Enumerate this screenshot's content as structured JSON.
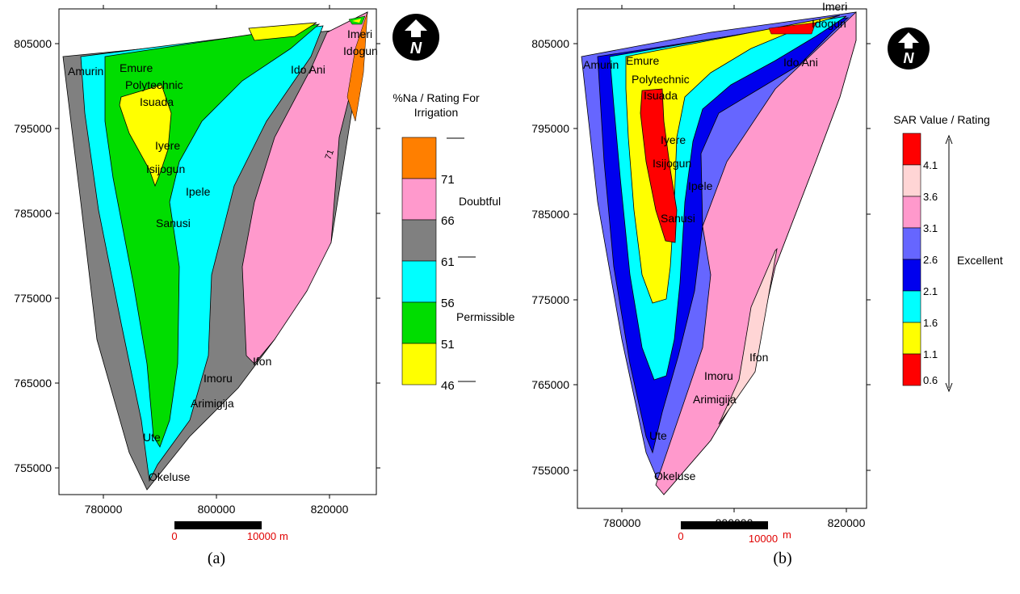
{
  "panels": [
    {
      "id": "a",
      "caption": "(a)",
      "x_ticks": [
        "780000",
        "800000",
        "820000"
      ],
      "y_ticks": [
        "805000",
        "795000",
        "785000",
        "775000",
        "765000",
        "755000"
      ],
      "legend_title_lines": [
        "%Na / Rating For",
        "Irrigation"
      ],
      "legend_classes": [
        {
          "value": "",
          "color": "#ff7f00"
        },
        {
          "value": "71",
          "color": "#ff99cc"
        },
        {
          "value": "66",
          "color": "#808080"
        },
        {
          "value": "61",
          "color": "#00ffff"
        },
        {
          "value": "56",
          "color": "#00dd00"
        },
        {
          "value": "51",
          "color": "#ffff00"
        },
        {
          "value": "46",
          "color": ""
        }
      ],
      "ratings": [
        "Doubtful",
        "Permissible"
      ],
      "contour_label": "71",
      "towns": [
        "Imeri",
        "Idogun",
        "Ido Ani",
        "Amurin",
        "Emure",
        "Polytechnic",
        "Isuada",
        "Iyere",
        "Isijogun",
        "Ipele",
        "Sanusi",
        "Ifon",
        "Imoru",
        "Arimigija",
        "Ute",
        "Okeluse"
      ],
      "scale": {
        "start": "0",
        "end": "10000",
        "unit": "m"
      }
    },
    {
      "id": "b",
      "caption": "(b)",
      "x_ticks": [
        "780000",
        "800000",
        "820000"
      ],
      "y_ticks": [
        "805000",
        "795000",
        "785000",
        "775000",
        "765000",
        "755000"
      ],
      "legend_title": "SAR Value / Rating",
      "legend_classes": [
        {
          "value": "4.1",
          "color": "#ff0000"
        },
        {
          "value": "3.6",
          "color": "#ffd5d5"
        },
        {
          "value": "3.1",
          "color": "#ff99cc"
        },
        {
          "value": "2.6",
          "color": "#6666ff"
        },
        {
          "value": "2.1",
          "color": "#0000ee"
        },
        {
          "value": "1.6",
          "color": "#00ffff"
        },
        {
          "value": "1.1",
          "color": "#ffff00"
        },
        {
          "value": "0.6",
          "color": "#ff0000"
        }
      ],
      "rating": "Excellent",
      "towns": [
        "Imeri",
        "Idogun",
        "Ido Ani",
        "Amurin",
        "Emure",
        "Polytechnic",
        "Isuada",
        "Iyere",
        "Isijogun",
        "Ipele",
        "Sanusi",
        "Ifon",
        "Imoru",
        "Arimigija",
        "Ute",
        "Okeluse"
      ],
      "scale": {
        "start": "0",
        "end": "10000",
        "unit": "m"
      }
    }
  ],
  "north_arrow_letter": "N",
  "icons": [
    "north-arrow-icon",
    "double-arrow-icon"
  ]
}
